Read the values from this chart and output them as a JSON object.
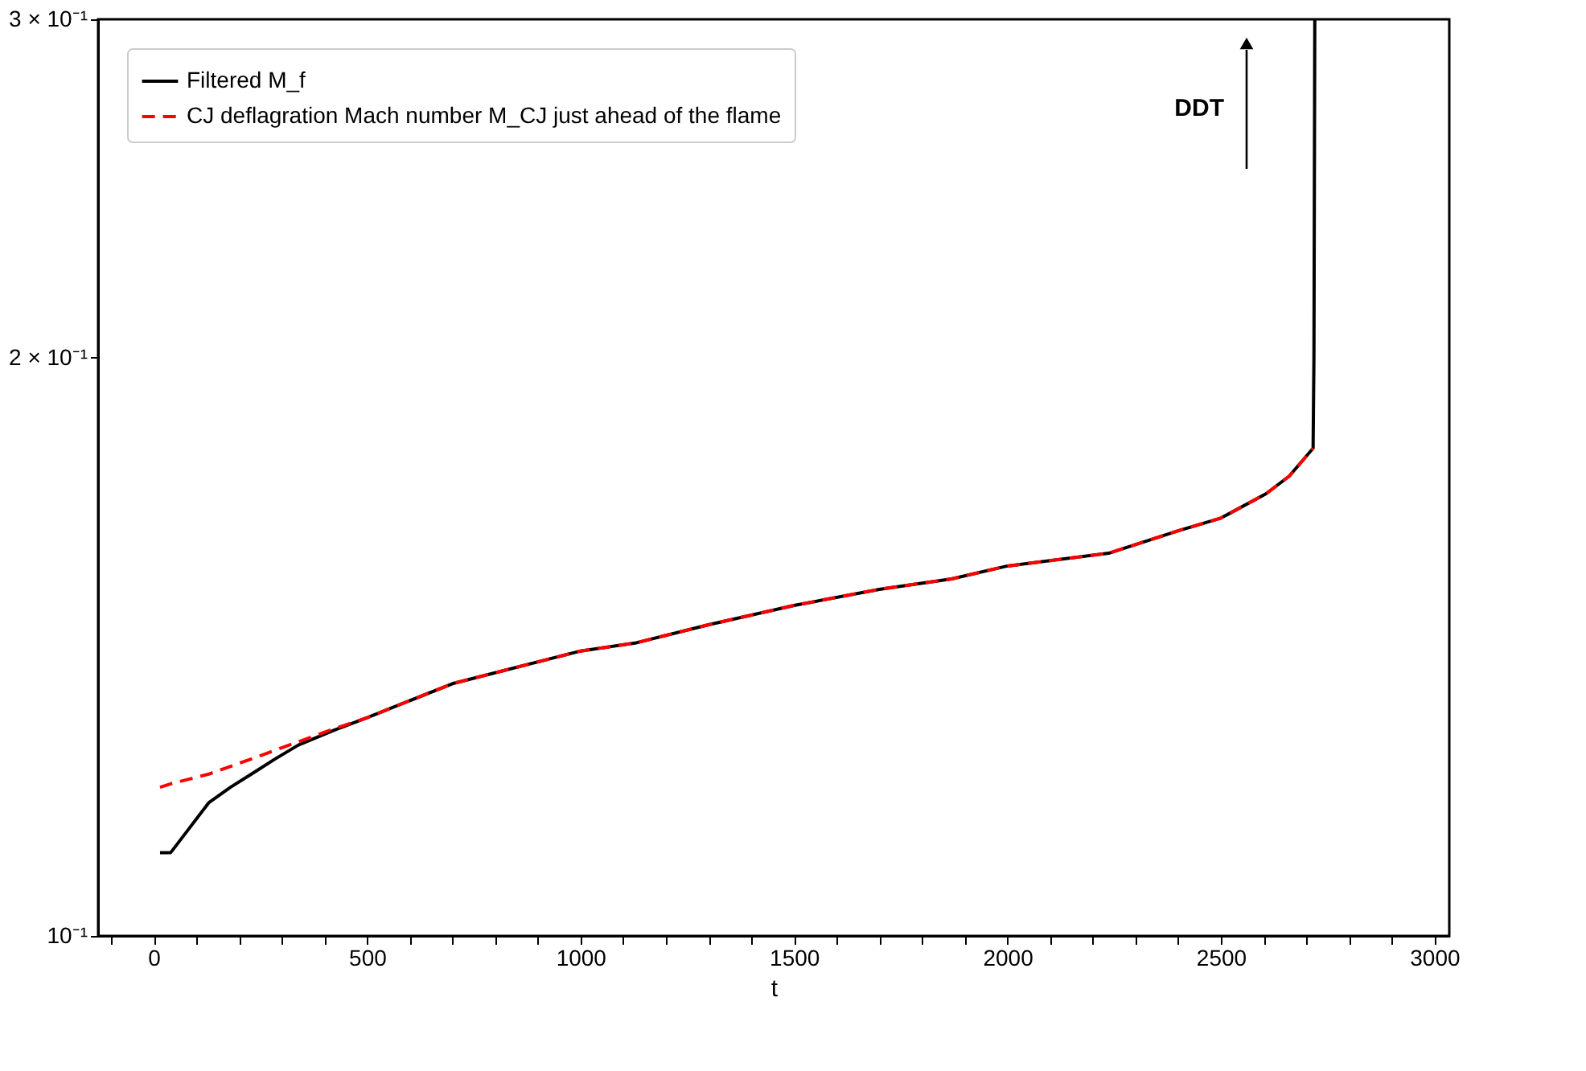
{
  "chart_data": {
    "type": "line",
    "xlabel": "t",
    "log": "y",
    "legend": "top left",
    "grid": false,
    "xlim": [
      -130,
      3035
    ],
    "ylim": [
      0.1,
      0.3
    ],
    "xticks": [
      {
        "value": -100,
        "label": null
      },
      0,
      {
        "value": 100,
        "label": null
      },
      {
        "value": 200,
        "label": null
      },
      {
        "value": 300,
        "label": null
      },
      {
        "value": 400,
        "label": null
      },
      500,
      {
        "value": 600,
        "label": null
      },
      {
        "value": 700,
        "label": null
      },
      {
        "value": 800,
        "label": null
      },
      {
        "value": 900,
        "label": null
      },
      1000,
      {
        "value": 1100,
        "label": null
      },
      {
        "value": 1200,
        "label": null
      },
      {
        "value": 1300,
        "label": null
      },
      {
        "value": 1400,
        "label": null
      },
      1500,
      {
        "value": 1600,
        "label": null
      },
      {
        "value": 1700,
        "label": null
      },
      {
        "value": 1800,
        "label": null
      },
      {
        "value": 1900,
        "label": null
      },
      2000,
      {
        "value": 2100,
        "label": null
      },
      {
        "value": 2200,
        "label": null
      },
      {
        "value": 2300,
        "label": null
      },
      {
        "value": 2400,
        "label": null
      },
      2500,
      {
        "value": 2600,
        "label": null
      },
      {
        "value": 2700,
        "label": null
      },
      {
        "value": 2800,
        "label": null
      },
      {
        "value": 2900,
        "label": null
      },
      3000
    ],
    "yticks": [
      {
        "value": 0.1,
        "label": "10⁻¹"
      },
      {
        "value": 0.2,
        "label": "2 × 10⁻¹"
      },
      {
        "value": 0.3,
        "label": "3 × 10⁻¹"
      }
    ],
    "annotations": [
      "DDT"
    ],
    "series": [
      {
        "name": "Filtered M_f",
        "color": "#000000",
        "line_style": "solid",
        "x": [
          15,
          40,
          80,
          129,
          180,
          229,
          284,
          339,
          424,
          500,
          700,
          1000,
          1131,
          1300,
          1500,
          1700,
          1869,
          2000,
          2237,
          2400,
          2500,
          2606,
          2660,
          2716,
          2718,
          2720
        ],
        "values": [
          0.1105,
          0.1105,
          0.1135,
          0.1173,
          0.1195,
          0.1214,
          0.1236,
          0.1257,
          0.128,
          0.1299,
          0.1353,
          0.1407,
          0.1421,
          0.1452,
          0.1486,
          0.1515,
          0.1534,
          0.1558,
          0.1582,
          0.1625,
          0.165,
          0.1699,
          0.1735,
          0.1794,
          0.2,
          0.3
        ]
      },
      {
        "name": "CJ deflagration Mach number M_CJ just ahead of the flame",
        "color": "#ff0000",
        "line_style": "dashed",
        "x": [
          15,
          40,
          129,
          254,
          339,
          424,
          500,
          700,
          1000,
          1131,
          1300,
          1500,
          1700,
          1869,
          2000,
          2237,
          2400,
          2500,
          2606,
          2660,
          2716
        ],
        "values": [
          0.1195,
          0.12,
          0.1214,
          0.1242,
          0.1262,
          0.1282,
          0.1299,
          0.1353,
          0.1407,
          0.1421,
          0.1452,
          0.1486,
          0.1515,
          0.1534,
          0.1558,
          0.1582,
          0.1625,
          0.165,
          0.1699,
          0.1735,
          0.1794
        ]
      }
    ]
  }
}
